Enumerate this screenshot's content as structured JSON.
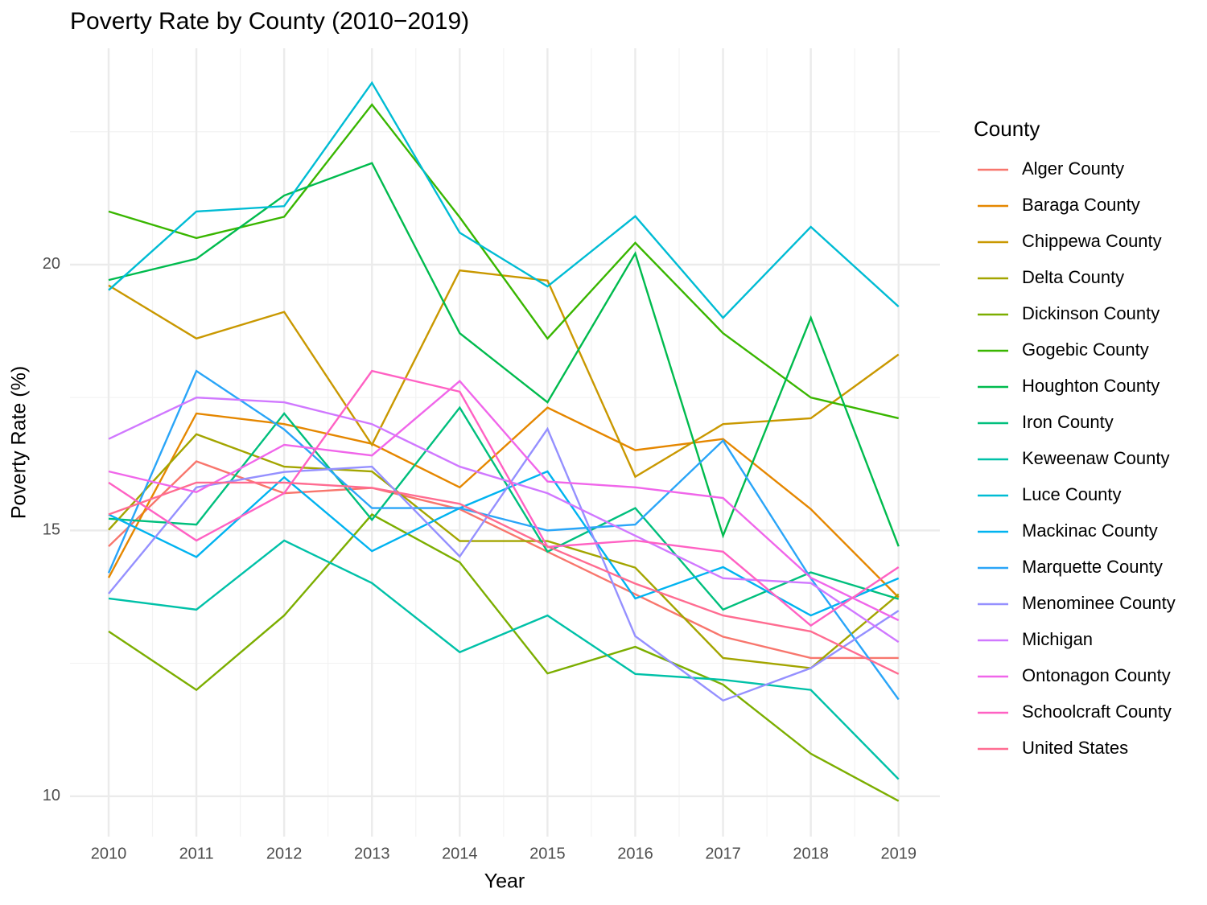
{
  "chart_data": {
    "type": "line",
    "title": "Poverty Rate by County (2010−2019)",
    "x_label": "Year",
    "y_label": "Poverty Rate (%)",
    "legend_title": "County",
    "x": [
      2010,
      2011,
      2012,
      2013,
      2014,
      2015,
      2016,
      2017,
      2018,
      2019
    ],
    "xlim": [
      2009.56,
      2019.47
    ],
    "xticks": [
      2010,
      2011,
      2012,
      2013,
      2014,
      2015,
      2016,
      2017,
      2018,
      2019
    ],
    "ylim": [
      9.24,
      24.07
    ],
    "yticks": [
      10,
      15,
      20
    ],
    "grid": true,
    "legend": "right",
    "series": [
      {
        "name": "Alger County",
        "color": "#F8766D",
        "values": [
          14.7,
          16.3,
          15.7,
          15.8,
          15.4,
          14.6,
          13.8,
          13.0,
          12.6,
          12.6
        ]
      },
      {
        "name": "Baraga County",
        "color": "#E58700",
        "values": [
          14.11,
          17.2,
          17.0,
          16.63,
          15.81,
          17.31,
          16.51,
          16.72,
          15.4,
          13.74
        ]
      },
      {
        "name": "Chippewa County",
        "color": "#C99800",
        "values": [
          19.61,
          18.61,
          19.11,
          16.61,
          19.89,
          19.7,
          16.01,
          17.0,
          17.11,
          18.31
        ]
      },
      {
        "name": "Delta County",
        "color": "#A3A500",
        "values": [
          15.01,
          16.81,
          16.2,
          16.11,
          14.8,
          14.8,
          14.3,
          12.6,
          12.41,
          13.8
        ]
      },
      {
        "name": "Dickinson County",
        "color": "#7CAE00",
        "values": [
          13.1,
          12.0,
          13.4,
          15.3,
          14.4,
          12.31,
          12.81,
          12.1,
          10.8,
          9.91
        ]
      },
      {
        "name": "Gogebic County",
        "color": "#39B600",
        "values": [
          21.0,
          20.5,
          20.9,
          23.01,
          20.89,
          18.61,
          20.41,
          18.71,
          17.5,
          17.11
        ]
      },
      {
        "name": "Houghton County",
        "color": "#00BB4E",
        "values": [
          19.71,
          20.11,
          21.3,
          21.91,
          18.71,
          17.41,
          20.21,
          14.9,
          19.0,
          14.7
        ]
      },
      {
        "name": "Iron County",
        "color": "#00BF7D",
        "values": [
          15.22,
          15.11,
          17.2,
          15.2,
          17.31,
          14.6,
          15.42,
          13.51,
          14.21,
          13.71
        ]
      },
      {
        "name": "Keweenaw County",
        "color": "#00C1A8",
        "values": [
          13.72,
          13.51,
          14.81,
          14.01,
          12.71,
          13.4,
          12.3,
          12.19,
          12.0,
          10.32
        ]
      },
      {
        "name": "Luce County",
        "color": "#00BCD4",
        "values": [
          19.52,
          21.0,
          21.1,
          23.42,
          20.6,
          19.59,
          20.91,
          19.0,
          20.71,
          19.21
        ]
      },
      {
        "name": "Mackinac County",
        "color": "#00B3F0",
        "values": [
          15.3,
          14.5,
          16.0,
          14.61,
          15.42,
          16.11,
          13.72,
          14.31,
          13.4,
          14.1
        ]
      },
      {
        "name": "Marquette County",
        "color": "#2AA5F8",
        "values": [
          14.2,
          18.0,
          16.9,
          15.42,
          15.42,
          15.0,
          15.11,
          16.69,
          14.1,
          11.82
        ]
      },
      {
        "name": "Menominee County",
        "color": "#9590FF",
        "values": [
          13.81,
          15.81,
          16.1,
          16.2,
          14.51,
          16.91,
          13.01,
          11.8,
          12.41,
          13.49
        ]
      },
      {
        "name": "Michigan",
        "color": "#D078FF",
        "values": [
          16.72,
          17.5,
          17.41,
          17.0,
          16.2,
          15.7,
          14.9,
          14.1,
          14.01,
          12.9
        ]
      },
      {
        "name": "Ontonagon County",
        "color": "#F066EA",
        "values": [
          16.11,
          15.72,
          16.61,
          16.41,
          17.81,
          15.92,
          15.81,
          15.61,
          14.11,
          13.31
        ]
      },
      {
        "name": "Schoolcraft County",
        "color": "#FF61C3",
        "values": [
          15.9,
          14.81,
          15.7,
          18.0,
          17.61,
          14.69,
          14.81,
          14.6,
          13.21,
          14.31
        ]
      },
      {
        "name": "United States",
        "color": "#FF6C91",
        "values": [
          15.3,
          15.9,
          15.9,
          15.8,
          15.5,
          14.7,
          14.0,
          13.4,
          13.1,
          12.3
        ]
      }
    ]
  }
}
